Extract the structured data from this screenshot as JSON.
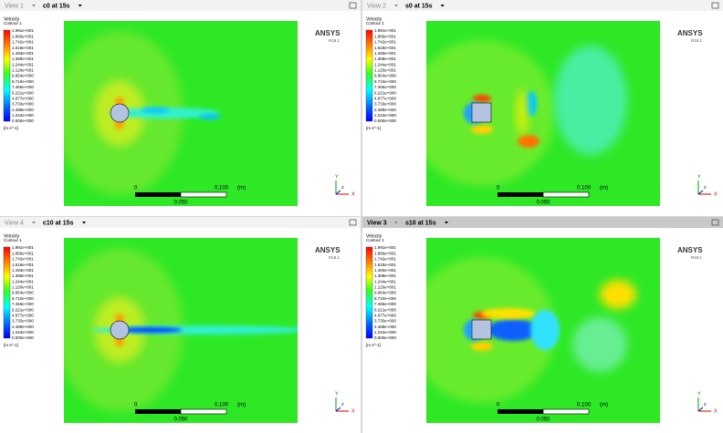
{
  "views": [
    {
      "header": "View 1",
      "title": "c0 at 15s"
    },
    {
      "header": "View 2",
      "title": "s0 at 15s"
    },
    {
      "header": "View 4",
      "title": "c10 at 15s"
    },
    {
      "header": "View 3",
      "title": "s10 at 15s"
    }
  ],
  "legend": {
    "variable": "Velocity",
    "name": "Contour 1",
    "labels": [
      "1.991e+001",
      "1.866e+001",
      "1.742e+001",
      "1.618e+001",
      "1.493e+001",
      "1.369e+001",
      "1.244e+001",
      "1.120e+001",
      "9.954e+000",
      "8.710e+000",
      "7.466e+000",
      "6.221e+000",
      "4.977e+000",
      "3.733e+000",
      "2.489e+000",
      "1.244e+000",
      "0.000e+000"
    ],
    "unit": "[m s^-1]"
  },
  "logo": {
    "name": "ANSYS",
    "version": "R18.1"
  },
  "scale": {
    "start": "0",
    "end": "0.100",
    "unit": "(m)",
    "mid": "0.050"
  },
  "axes": {
    "y": "Y",
    "x": "X",
    "z": "Z"
  }
}
